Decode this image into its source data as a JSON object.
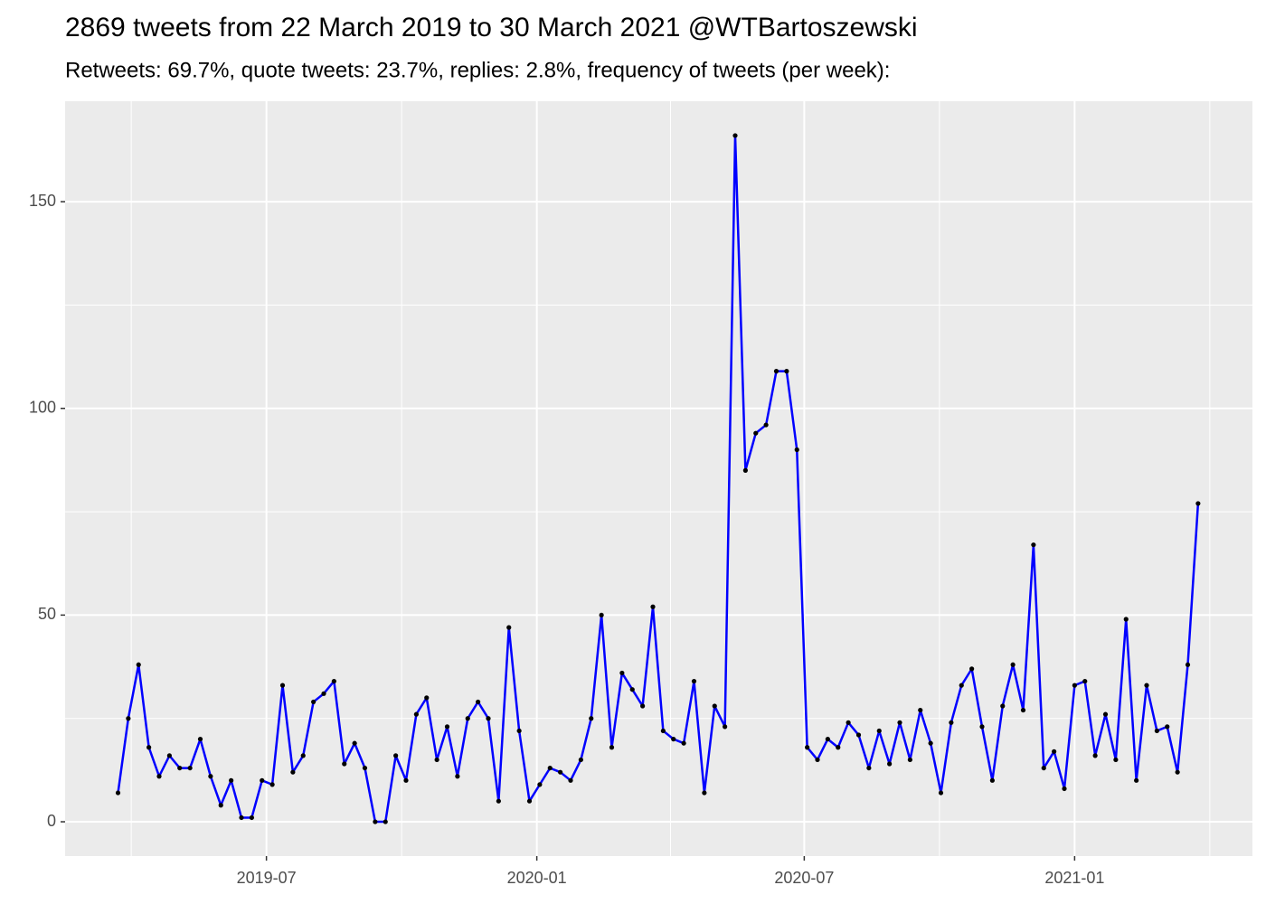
{
  "chart_data": {
    "type": "line",
    "title": "2869 tweets from 22 March 2019 to 30 March 2021 @WTBartoszewski",
    "subtitle": "Retweets: 69.7%, quote tweets: 23.7%, replies: 2.8%, frequency of tweets (per week):",
    "x": [
      "2019-03-22",
      "2019-03-29",
      "2019-04-05",
      "2019-04-12",
      "2019-04-19",
      "2019-04-26",
      "2019-05-03",
      "2019-05-10",
      "2019-05-17",
      "2019-05-24",
      "2019-05-31",
      "2019-06-07",
      "2019-06-14",
      "2019-06-21",
      "2019-06-28",
      "2019-07-05",
      "2019-07-12",
      "2019-07-19",
      "2019-07-26",
      "2019-08-02",
      "2019-08-09",
      "2019-08-16",
      "2019-08-23",
      "2019-08-30",
      "2019-09-06",
      "2019-09-13",
      "2019-09-20",
      "2019-09-27",
      "2019-10-04",
      "2019-10-11",
      "2019-10-18",
      "2019-10-25",
      "2019-11-01",
      "2019-11-08",
      "2019-11-15",
      "2019-11-22",
      "2019-11-29",
      "2019-12-06",
      "2019-12-13",
      "2019-12-20",
      "2019-12-27",
      "2020-01-03",
      "2020-01-10",
      "2020-01-17",
      "2020-01-24",
      "2020-01-31",
      "2020-02-07",
      "2020-02-14",
      "2020-02-21",
      "2020-02-28",
      "2020-03-06",
      "2020-03-13",
      "2020-03-20",
      "2020-03-27",
      "2020-04-03",
      "2020-04-10",
      "2020-04-17",
      "2020-04-24",
      "2020-05-01",
      "2020-05-08",
      "2020-05-15",
      "2020-05-22",
      "2020-05-29",
      "2020-06-05",
      "2020-06-12",
      "2020-06-19",
      "2020-06-26",
      "2020-07-03",
      "2020-07-10",
      "2020-07-17",
      "2020-07-24",
      "2020-07-31",
      "2020-08-07",
      "2020-08-14",
      "2020-08-21",
      "2020-08-28",
      "2020-09-04",
      "2020-09-11",
      "2020-09-18",
      "2020-09-25",
      "2020-10-02",
      "2020-10-09",
      "2020-10-16",
      "2020-10-23",
      "2020-10-30",
      "2020-11-06",
      "2020-11-13",
      "2020-11-20",
      "2020-11-27",
      "2020-12-04",
      "2020-12-11",
      "2020-12-18",
      "2020-12-25",
      "2021-01-01",
      "2021-01-08",
      "2021-01-15",
      "2021-01-22",
      "2021-01-29",
      "2021-02-05",
      "2021-02-12",
      "2021-02-19",
      "2021-02-26",
      "2021-03-05",
      "2021-03-12",
      "2021-03-19",
      "2021-03-26"
    ],
    "series": [
      {
        "color": "#0000ff",
        "point_color": "#000000",
        "values": [
          7,
          25,
          38,
          18,
          11,
          16,
          13,
          13,
          20,
          11,
          4,
          10,
          1,
          1,
          10,
          9,
          33,
          12,
          16,
          29,
          31,
          34,
          14,
          19,
          13,
          0,
          0,
          16,
          10,
          26,
          30,
          15,
          23,
          11,
          25,
          29,
          25,
          5,
          47,
          22,
          5,
          9,
          13,
          12,
          10,
          15,
          25,
          50,
          18,
          36,
          32,
          28,
          52,
          22,
          20,
          19,
          34,
          7,
          28,
          23,
          166,
          85,
          94,
          96,
          109,
          109,
          90,
          18,
          15,
          20,
          18,
          24,
          21,
          13,
          22,
          14,
          24,
          15,
          27,
          19,
          7,
          24,
          33,
          37,
          23,
          10,
          28,
          38,
          27,
          67,
          13,
          17,
          8,
          33,
          34,
          16,
          26,
          15,
          49,
          10,
          33,
          22,
          23,
          12,
          38,
          77
        ]
      }
    ],
    "xlim": [
      "2019-02-14",
      "2021-05-02"
    ],
    "xticks": [
      {
        "value": "2019-07-01",
        "label": "2019-07"
      },
      {
        "value": "2020-01-01",
        "label": "2020-01"
      },
      {
        "value": "2020-07-01",
        "label": "2020-07"
      },
      {
        "value": "2021-01-01",
        "label": "2021-01"
      }
    ],
    "ylim": [
      -8.3,
      174.3
    ],
    "yticks": [
      0,
      50,
      100,
      150
    ],
    "grid": true
  }
}
